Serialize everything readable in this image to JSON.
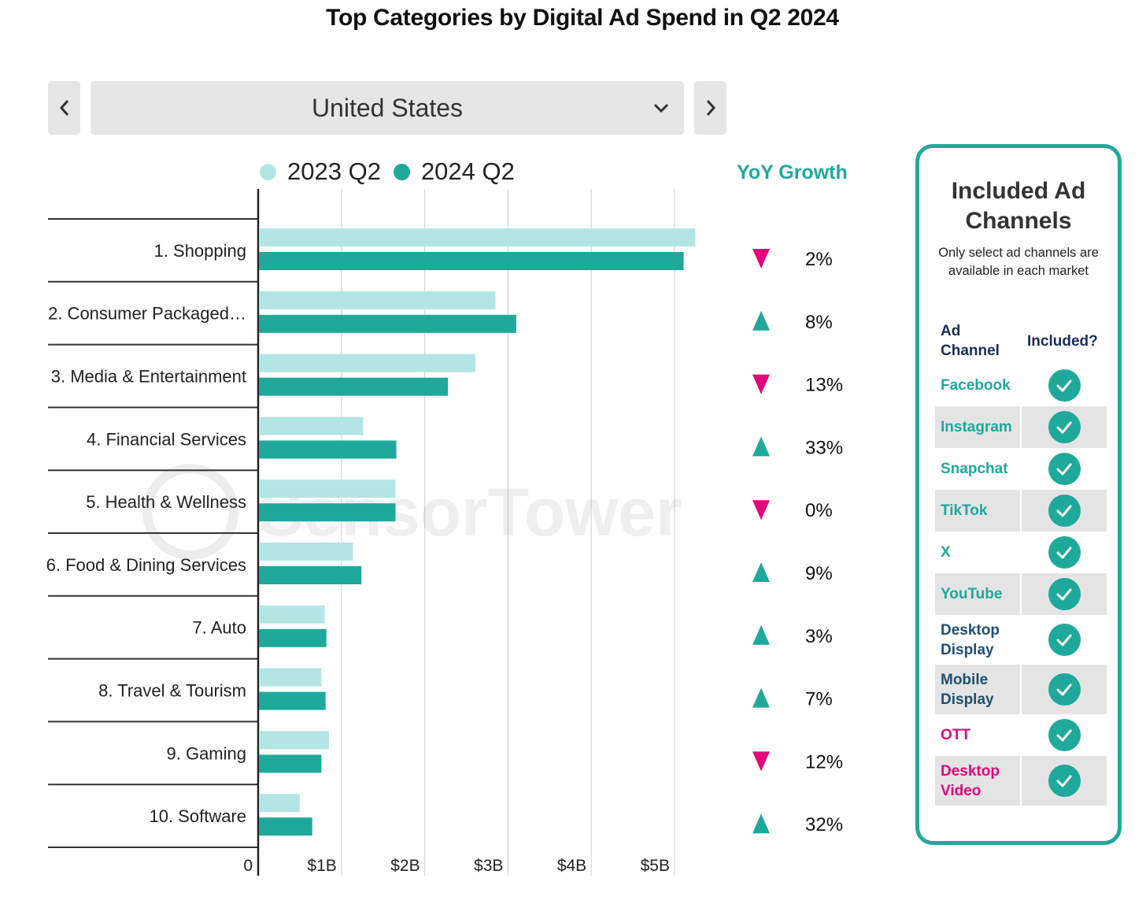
{
  "header": {
    "title": "Top Categories by Digital Ad Spend in Q2 2024"
  },
  "country_selector": {
    "selected": "United States",
    "prev_icon": "chevron-left-icon",
    "next_icon": "chevron-right-icon",
    "dropdown_icon": "chevron-down-icon"
  },
  "colors": {
    "series_2023": "#b3e6e3",
    "series_2024": "#1fa99b",
    "growth_up": "#1fa99b",
    "growth_down": "#e2087b",
    "axis": "#222222",
    "grid": "#d6d6d6"
  },
  "chart_data": {
    "type": "bar",
    "orientation": "horizontal",
    "title": "Top Categories by Digital Ad Spend in Q2 2024",
    "xlabel": "",
    "ylabel": "",
    "xlim": [
      0,
      5.5
    ],
    "x_unit": "USD billions",
    "grid": true,
    "legend_position": "top",
    "x_ticks": [
      {
        "value": 0,
        "label": "0"
      },
      {
        "value": 1,
        "label": "$1B"
      },
      {
        "value": 2,
        "label": "$2B"
      },
      {
        "value": 3,
        "label": "$3B"
      },
      {
        "value": 4,
        "label": "$4B"
      },
      {
        "value": 5,
        "label": "$5B"
      }
    ],
    "categories": [
      "1. Shopping",
      "2. Consumer Packaged…",
      "3. Media & Entertainment",
      "4. Financial Services",
      "5. Health & Wellness",
      "6. Food & Dining Services",
      "7. Auto",
      "8. Travel & Tourism",
      "9. Gaming",
      "10. Software"
    ],
    "series": [
      {
        "name": "2023 Q2",
        "values": [
          5.24,
          2.84,
          2.6,
          1.25,
          1.64,
          1.13,
          0.79,
          0.75,
          0.84,
          0.49
        ]
      },
      {
        "name": "2024 Q2",
        "values": [
          5.1,
          3.09,
          2.27,
          1.65,
          1.64,
          1.23,
          0.81,
          0.8,
          0.75,
          0.64
        ]
      }
    ],
    "yoy_growth": {
      "header": "YoY Growth",
      "values": [
        {
          "direction": "down",
          "label": "2%"
        },
        {
          "direction": "up",
          "label": "8%"
        },
        {
          "direction": "down",
          "label": "13%"
        },
        {
          "direction": "up",
          "label": "33%"
        },
        {
          "direction": "down",
          "label": "0%"
        },
        {
          "direction": "up",
          "label": "9%"
        },
        {
          "direction": "up",
          "label": "3%"
        },
        {
          "direction": "up",
          "label": "7%"
        },
        {
          "direction": "down",
          "label": "12%"
        },
        {
          "direction": "up",
          "label": "32%"
        }
      ]
    },
    "watermark": "SensorTower"
  },
  "channels_panel": {
    "title_line1": "Included Ad",
    "title_line2": "Channels",
    "subtitle_line1": "Only select ad channels are",
    "subtitle_line2": "available in each market",
    "col_channel_line1": "Ad",
    "col_channel_line2": "Channel",
    "col_included": "Included?",
    "rows": [
      {
        "line1": "Facebook",
        "line2": "",
        "color": "#1fa99b",
        "included": true
      },
      {
        "line1": "Instagram",
        "line2": "",
        "color": "#1fa99b",
        "included": true
      },
      {
        "line1": "Snapchat",
        "line2": "",
        "color": "#1fa99b",
        "included": true
      },
      {
        "line1": "TikTok",
        "line2": "",
        "color": "#1fa99b",
        "included": true
      },
      {
        "line1": "X",
        "line2": "",
        "color": "#1fa99b",
        "included": true
      },
      {
        "line1": "YouTube",
        "line2": "",
        "color": "#1fa99b",
        "included": true
      },
      {
        "line1": "Desktop",
        "line2": "Display",
        "color": "#1f5073",
        "included": true
      },
      {
        "line1": "Mobile",
        "line2": "Display",
        "color": "#1f5073",
        "included": true
      },
      {
        "line1": "OTT",
        "line2": "",
        "color": "#e2087b",
        "included": true
      },
      {
        "line1": "Desktop",
        "line2": "Video",
        "color": "#e2087b",
        "included": true
      }
    ]
  }
}
